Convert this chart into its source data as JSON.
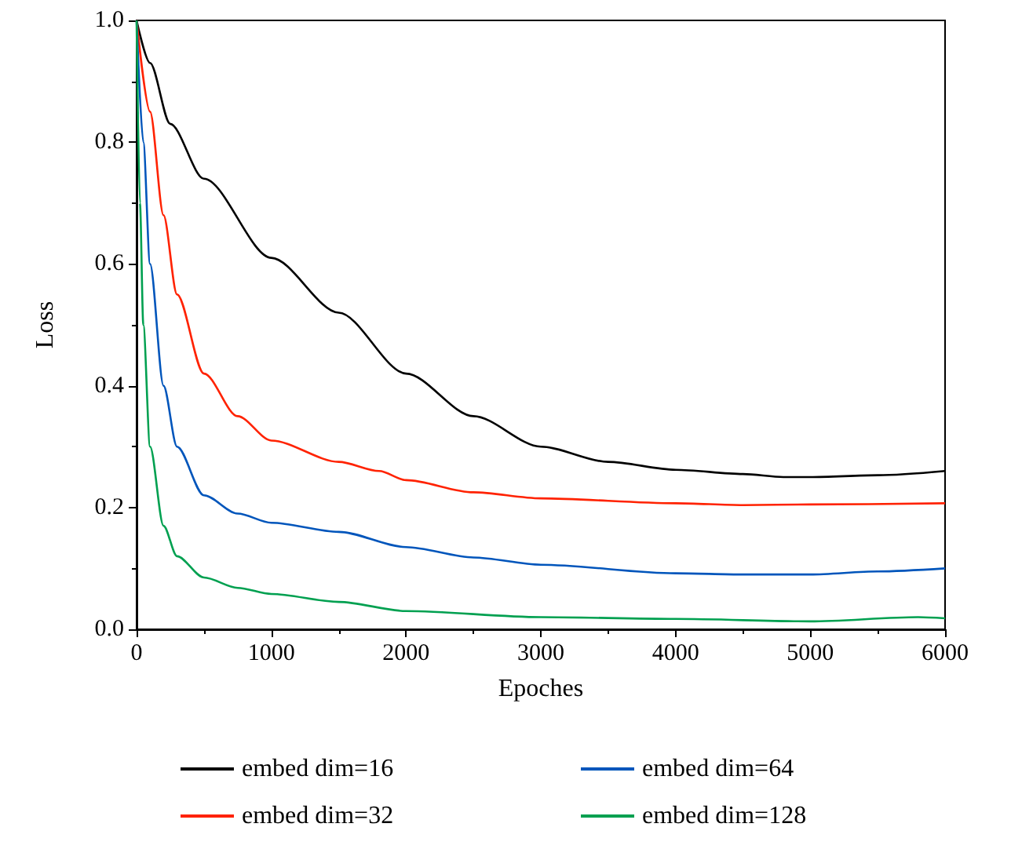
{
  "chart_data": {
    "type": "line",
    "xlabel": "Epoches",
    "ylabel": "Loss",
    "xlim": [
      0,
      6000
    ],
    "xticks": [
      0,
      1000,
      2000,
      3000,
      4000,
      5000,
      6000
    ],
    "ylim": [
      0,
      1
    ],
    "yticks": [
      {
        "value": 0,
        "label": "0.0"
      },
      0.2,
      0.4,
      0.6,
      0.8,
      {
        "value": 1,
        "label": "1.0"
      }
    ],
    "grid": false,
    "legend": "bottom",
    "marker": "none",
    "line_style": "solid",
    "series": [
      {
        "name": "embed dim=16",
        "color": "#000000",
        "x": [
          0,
          100,
          250,
          500,
          1000,
          1500,
          2000,
          2500,
          3000,
          3500,
          4000,
          4500,
          4800,
          5000,
          5500,
          6000
        ],
        "values": [
          1,
          0.93,
          0.83,
          0.74,
          0.61,
          0.52,
          0.42,
          0.35,
          0.3,
          0.275,
          0.262,
          0.255,
          0.25,
          0.25,
          0.253,
          0.26
        ]
      },
      {
        "name": "embed dim=32",
        "color": "#ff2200",
        "x": [
          0,
          100,
          200,
          300,
          500,
          750,
          1000,
          1500,
          1800,
          2000,
          2500,
          3000,
          4000,
          4500,
          5000,
          6000
        ],
        "values": [
          1,
          0.85,
          0.68,
          0.55,
          0.42,
          0.35,
          0.31,
          0.275,
          0.26,
          0.245,
          0.225,
          0.215,
          0.207,
          0.204,
          0.205,
          0.207
        ]
      },
      {
        "name": "embed dim=64",
        "color": "#0055bb",
        "x": [
          0,
          50,
          100,
          200,
          300,
          500,
          750,
          1000,
          1500,
          2000,
          2500,
          3000,
          4000,
          4500,
          5000,
          5500,
          6000
        ],
        "values": [
          1,
          0.8,
          0.6,
          0.4,
          0.3,
          0.22,
          0.19,
          0.175,
          0.16,
          0.135,
          0.118,
          0.106,
          0.092,
          0.09,
          0.09,
          0.095,
          0.1
        ]
      },
      {
        "name": "embed dim=128",
        "color": "#00a050",
        "x": [
          0,
          25,
          50,
          100,
          200,
          300,
          500,
          750,
          1000,
          1500,
          2000,
          3000,
          4000,
          5000,
          5800,
          6000
        ],
        "values": [
          1,
          0.7,
          0.5,
          0.3,
          0.17,
          0.12,
          0.085,
          0.068,
          0.058,
          0.045,
          0.03,
          0.02,
          0.017,
          0.013,
          0.02,
          0.018
        ]
      }
    ]
  }
}
